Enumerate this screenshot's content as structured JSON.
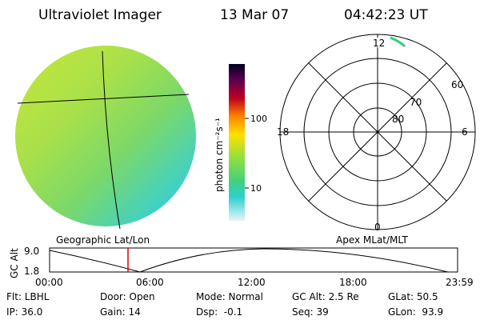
{
  "header": {
    "title": "Ultraviolet Imager",
    "date": "13 Mar 07",
    "time": "04:42:23 UT"
  },
  "colorbar": {
    "label": "photon cm⁻²s⁻¹",
    "ticks": [
      "100",
      "10"
    ]
  },
  "polar": {
    "top": "12",
    "left": "18",
    "right": "6",
    "bottom": "0",
    "rings": [
      "60",
      "70",
      "80"
    ]
  },
  "timeline": {
    "left_label": "Geographic Lat/Lon",
    "right_label": "Apex MLat/MLT",
    "y_axis_label": "GC Alt",
    "y_ticks": [
      "9.0",
      "1.8"
    ],
    "x_ticks": [
      "00:00",
      "06:00",
      "12:00",
      "18:00",
      "23:59"
    ]
  },
  "status": {
    "rows": [
      [
        "Flt: LBHL",
        "Door: Open",
        "Mode: Normal",
        "GC Alt: 2.5 Re",
        "GLat: 50.5"
      ],
      [
        "IP: 36.0",
        "Gain: 14",
        "Dsp:  -0.1",
        "Seq: 39",
        "GLon:  93.9"
      ]
    ]
  }
}
